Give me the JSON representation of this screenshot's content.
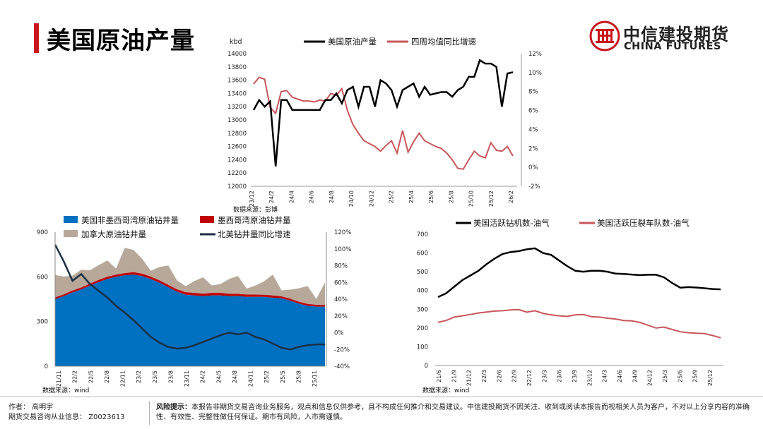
{
  "page": {
    "title": "美国原油产量"
  },
  "logo": {
    "cn": "中信建投期货",
    "en": "CHINA FUTURES"
  },
  "footer": {
    "author": "作者：   高明宇",
    "license": "期货交易咨询从业信息：   Z0023613",
    "risk_label": "风险提示：",
    "risk_text": "本报告非期货交易咨询业务服务，观点和信息仅供参考，且不构成任何推介和交易建议。中信建投期货不因关注、收到或阅读本报告而视相关人员为客户，不对以上分享内容的准确性、有效性、完整性做任何保证。期市有风险，入市需谨慎。"
  },
  "colors": {
    "accent": "#c8161d",
    "black": "#000000",
    "red_line": "#c8575a",
    "blue": "#0070c0",
    "tan": "#b8a89a",
    "dark_red": "#c00000",
    "navy": "#1b2f45"
  },
  "chart_data": [
    {
      "type": "line",
      "unit_label": "kbd",
      "source": "数据来源：彭博",
      "x_tick_labels": [
        "23/12",
        "24/2",
        "24/4",
        "24/6",
        "24/8",
        "24/10",
        "24/12",
        "25/2",
        "25/4",
        "25/6",
        "25/8",
        "25/10",
        "25/12",
        "26/2"
      ],
      "y_left_ticks": [
        "14000",
        "13800",
        "13600",
        "13400",
        "13200",
        "13000",
        "12800",
        "12600",
        "12400",
        "12200",
        "12000"
      ],
      "y_right_ticks": [
        "12%",
        "10%",
        "8%",
        "6%",
        "4%",
        "2%",
        "0%",
        "-2%"
      ],
      "ylim_left": [
        12000,
        14000
      ],
      "ylim_right": [
        -2,
        12
      ],
      "series": [
        {
          "name": "美国原油产量",
          "axis": "left",
          "color": "#000000",
          "values": [
            13150,
            13300,
            13200,
            13280,
            12300,
            13300,
            13300,
            13150,
            13150,
            13150,
            13150,
            13150,
            13150,
            13300,
            13300,
            13400,
            13250,
            13450,
            13500,
            13200,
            13500,
            13500,
            13200,
            13600,
            13550,
            13450,
            13200,
            13450,
            13500,
            13550,
            13350,
            13500,
            13380,
            13400,
            13420,
            13420,
            13350,
            13450,
            13500,
            13650,
            13650,
            13900,
            13850,
            13850,
            13800,
            13200,
            13700,
            13720
          ]
        },
        {
          "name": "四周均值同比增速",
          "axis": "right",
          "color": "#c8575a",
          "values": [
            8.8,
            9.5,
            9.3,
            6.3,
            5.7,
            8.0,
            8.1,
            7.4,
            7.2,
            7.0,
            7.0,
            6.9,
            7.1,
            7.0,
            7.8,
            7.6,
            8.3,
            6.0,
            4.5,
            3.6,
            2.8,
            2.5,
            2.2,
            1.7,
            2.3,
            2.8,
            1.5,
            3.9,
            1.6,
            2.7,
            3.6,
            2.8,
            2.5,
            2.2,
            2.0,
            1.5,
            0.8,
            -0.1,
            -0.2,
            0.8,
            1.7,
            1.2,
            1.0,
            2.6,
            1.8,
            1.7,
            2.2,
            1.2
          ]
        }
      ]
    },
    {
      "type": "area",
      "source": "数据来源：wind",
      "x_tick_labels": [
        "21/11",
        "22/2",
        "22/5",
        "22/8",
        "22/11",
        "23/2",
        "23/5",
        "23/8",
        "23/11",
        "24/2",
        "24/5",
        "24/8",
        "24/11",
        "25/2",
        "25/5",
        "25/8",
        "25/11"
      ],
      "y_left_ticks": [
        "900",
        "600",
        "300",
        "0"
      ],
      "y_right_ticks": [
        "120%",
        "100%",
        "80%",
        "60%",
        "40%",
        "20%",
        "0%",
        "-20%",
        "-40%"
      ],
      "ylim_left": [
        0,
        900
      ],
      "ylim_right": [
        -40,
        120
      ],
      "series": [
        {
          "name": "美国非墨西哥湾原油钻井量",
          "kind": "stacked-area",
          "color": "#0070c0",
          "values": [
            450,
            470,
            495,
            515,
            540,
            565,
            585,
            600,
            610,
            615,
            605,
            585,
            560,
            530,
            500,
            480,
            475,
            470,
            475,
            475,
            470,
            470,
            465,
            465,
            465,
            460,
            455,
            440,
            420,
            405,
            400,
            400
          ]
        },
        {
          "name": "墨西哥湾原油钻井量",
          "kind": "stacked-area",
          "color": "#c00000",
          "values": [
            12,
            12,
            13,
            13,
            14,
            14,
            15,
            15,
            15,
            16,
            16,
            16,
            16,
            16,
            16,
            17,
            17,
            17,
            17,
            17,
            16,
            16,
            16,
            16,
            15,
            15,
            14,
            14,
            13,
            13,
            12,
            12
          ]
        },
        {
          "name": "加拿大原油钻井量",
          "kind": "stacked-area",
          "color": "#b8a89a",
          "values": [
            150,
            120,
            100,
            120,
            90,
            100,
            110,
            40,
            170,
            150,
            100,
            40,
            90,
            130,
            60,
            40,
            80,
            110,
            50,
            60,
            100,
            120,
            40,
            60,
            90,
            140,
            40,
            60,
            90,
            120,
            40,
            150
          ]
        },
        {
          "name": "北美钻井量同比增速",
          "kind": "line",
          "axis": "right",
          "color": "#1b2f45",
          "values": [
            105,
            85,
            62,
            70,
            58,
            50,
            42,
            32,
            24,
            15,
            5,
            -5,
            -12,
            -17,
            -19,
            -18,
            -15,
            -11,
            -7,
            -3,
            0,
            -2,
            0,
            -5,
            -8,
            -13,
            -18,
            -20,
            -17,
            -15,
            -14,
            -14
          ]
        }
      ]
    },
    {
      "type": "line",
      "source": "数据来源：wind",
      "x_tick_labels": [
        "21/6",
        "21/9",
        "21/12",
        "22/3",
        "22/6",
        "22/9",
        "22/12",
        "23/3",
        "23/6",
        "23/9",
        "23/12",
        "24/3",
        "24/6",
        "24/9",
        "24/12",
        "25/3",
        "25/6",
        "25/9",
        "25/12"
      ],
      "y_ticks": [
        "700",
        "600",
        "500",
        "400",
        "300",
        "200",
        "100",
        "0"
      ],
      "ylim": [
        0,
        700
      ],
      "series": [
        {
          "name": "美国活跃钻机数-油气",
          "color": "#000000",
          "values": [
            365,
            385,
            420,
            455,
            480,
            505,
            540,
            570,
            595,
            605,
            610,
            620,
            625,
            600,
            590,
            560,
            530,
            505,
            500,
            505,
            505,
            500,
            490,
            488,
            485,
            482,
            484,
            484,
            470,
            440,
            415,
            418,
            416,
            412,
            408,
            406
          ]
        },
        {
          "name": "美国活跃压裂车队数-油气",
          "color": "#c8575a",
          "values": [
            230,
            240,
            258,
            265,
            272,
            280,
            285,
            290,
            292,
            296,
            298,
            285,
            292,
            278,
            270,
            265,
            262,
            270,
            272,
            260,
            258,
            252,
            248,
            240,
            238,
            230,
            215,
            200,
            205,
            192,
            180,
            175,
            172,
            170,
            160,
            148
          ]
        }
      ]
    }
  ]
}
